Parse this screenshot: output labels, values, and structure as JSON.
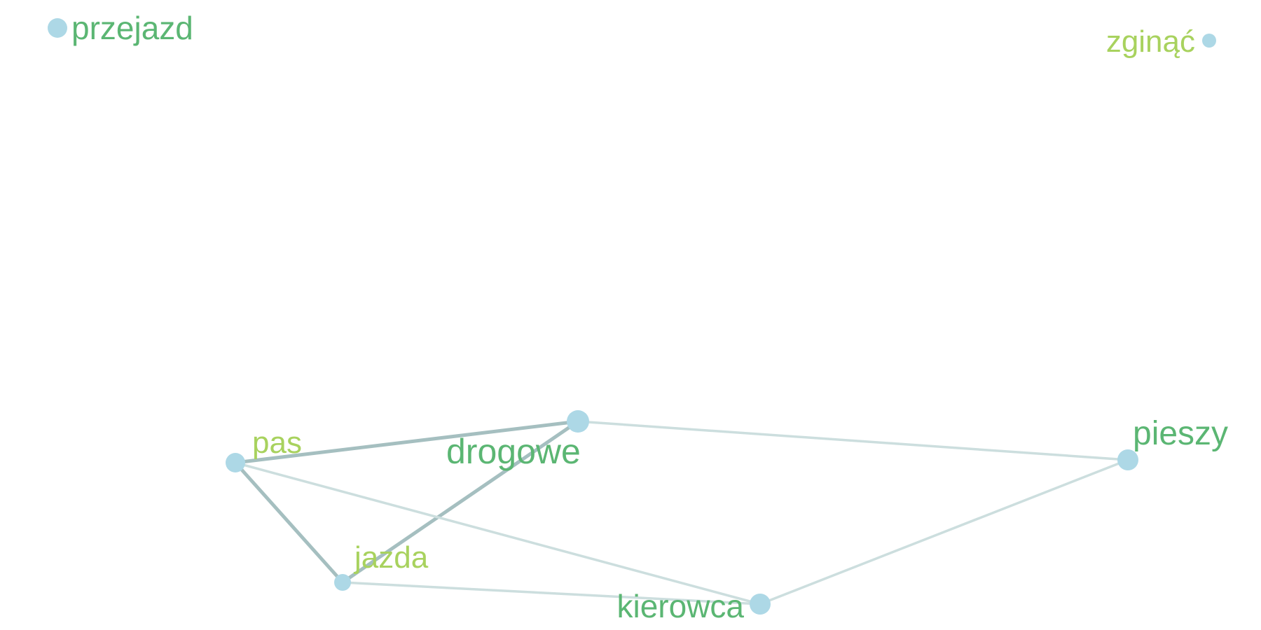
{
  "graph": {
    "colors": {
      "node_fill": "#ADD8E6",
      "label_dark": "#5BB673",
      "label_light": "#A8D25E",
      "edge_strong": "#A5BFC0",
      "edge_weak": "#CCDEDE"
    },
    "nodes": [
      {
        "id": "przejazd",
        "label": "przejazd"
      },
      {
        "id": "zginac",
        "label": "zginąć"
      },
      {
        "id": "drogowe",
        "label": "drogowe"
      },
      {
        "id": "pas",
        "label": "pas"
      },
      {
        "id": "pieszy",
        "label": "pieszy"
      },
      {
        "id": "jazda",
        "label": "jazda"
      },
      {
        "id": "kierowca",
        "label": "kierowca"
      }
    ],
    "edges": [
      {
        "source": "pas",
        "target": "drogowe",
        "strength": "strong"
      },
      {
        "source": "pas",
        "target": "jazda",
        "strength": "strong"
      },
      {
        "source": "jazda",
        "target": "drogowe",
        "strength": "strong"
      },
      {
        "source": "drogowe",
        "target": "pieszy",
        "strength": "weak"
      },
      {
        "source": "pas",
        "target": "kierowca",
        "strength": "weak"
      },
      {
        "source": "jazda",
        "target": "kierowca",
        "strength": "weak"
      },
      {
        "source": "kierowca",
        "target": "pieszy",
        "strength": "weak"
      }
    ]
  }
}
